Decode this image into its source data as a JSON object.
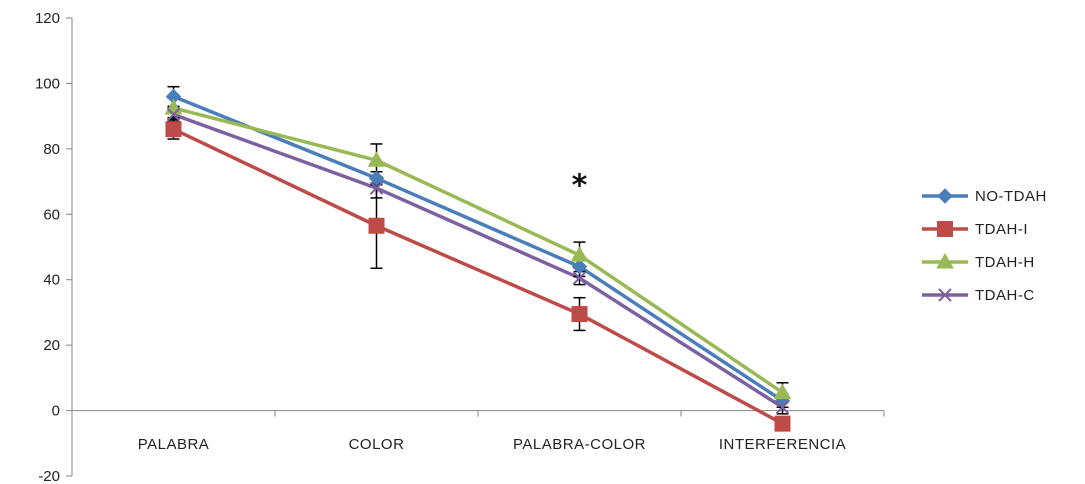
{
  "chart_data": {
    "type": "line",
    "title": "",
    "xlabel": "",
    "ylabel": "",
    "categories": [
      "PALABRA",
      "COLOR",
      "PALABRA-COLOR",
      "INTERFERENCIA"
    ],
    "ylim": [
      -20,
      120
    ],
    "yticks": [
      -20,
      0,
      20,
      40,
      60,
      80,
      100,
      120
    ],
    "grid": false,
    "legend_position": "right",
    "series": [
      {
        "name": "NO-TDAH",
        "color": "#4a7ebb",
        "marker": "diamond",
        "values": [
          96,
          71,
          44,
          3
        ],
        "errors": [
          3,
          2,
          3,
          2
        ]
      },
      {
        "name": "TDAH-I",
        "color": "#be4b48",
        "marker": "square",
        "values": [
          86,
          56.5,
          29.5,
          -4
        ],
        "errors": [
          3,
          13,
          5,
          2
        ]
      },
      {
        "name": "TDAH-H",
        "color": "#98b954",
        "marker": "triangle",
        "values": [
          92.5,
          76.5,
          47.5,
          5.5
        ],
        "errors": [
          3,
          5,
          4,
          3
        ]
      },
      {
        "name": "TDAH-C",
        "color": "#7d60a0",
        "marker": "x",
        "values": [
          90.5,
          68,
          40.5,
          1
        ],
        "errors": [
          2,
          3,
          2,
          2
        ]
      }
    ],
    "annotations": [
      {
        "text": "*",
        "category": "PALABRA-COLOR",
        "y": 70
      }
    ]
  }
}
